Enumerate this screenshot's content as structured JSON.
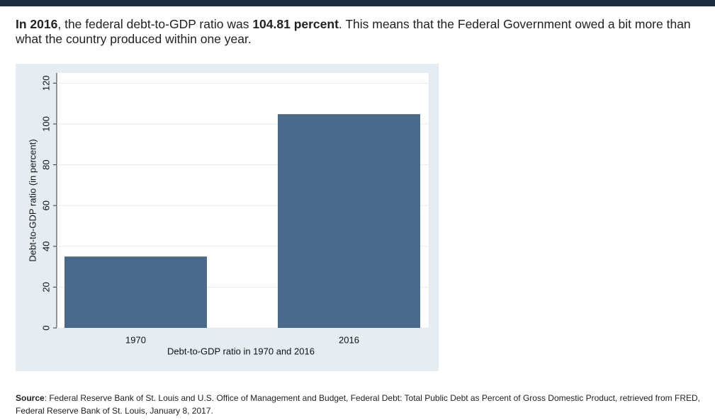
{
  "intro": {
    "lead": "In 2016",
    "middle": ", the federal debt-to-GDP ratio was ",
    "figure": "104.81 percent",
    "rest": ". This means that the Federal Government owed a bit more than what the country produced within one year."
  },
  "chart_data": {
    "type": "bar",
    "categories": [
      "1970",
      "2016"
    ],
    "values": [
      35,
      104.81
    ],
    "color": "#4a6a8b",
    "ylim": [
      0,
      125
    ],
    "yticks": [
      0,
      20,
      40,
      60,
      80,
      100,
      120
    ],
    "grid": true,
    "x_label": "Debt-to-GDP ratio in 1970 and 2016",
    "y_label": "Debt-to-GDP ratio (in percent)"
  },
  "source": {
    "label": "Source",
    "text": ": Federal Reserve Bank of St. Louis and U.S. Office of Management and Budget, Federal Debt: Total Public Debt as Percent of Gross Domestic Product, retrieved from FRED, Federal Reserve Bank of St. Louis, January 8, 2017."
  }
}
